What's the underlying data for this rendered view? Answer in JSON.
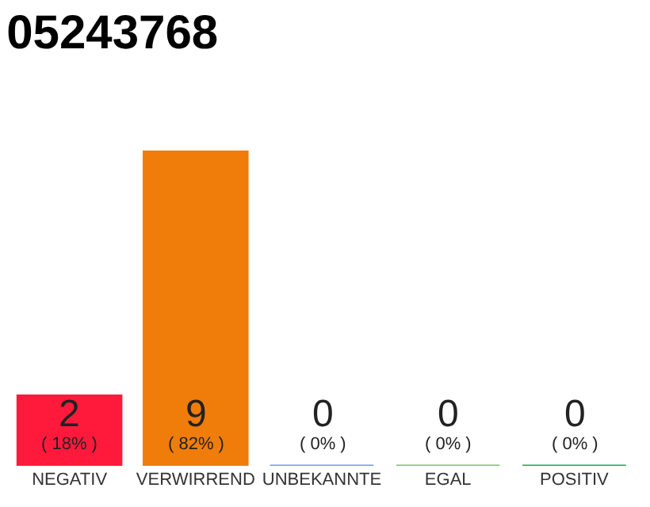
{
  "chart_data": {
    "type": "bar",
    "title": "05243768",
    "categories": [
      "NEGATIV",
      "VERWIRREND",
      "UNBEKANNTE",
      "EGAL",
      "POSITIV"
    ],
    "values": [
      2,
      9,
      0,
      0,
      0
    ],
    "colors": [
      "#ff1a3c",
      "#f07c0a",
      "#6f9be0",
      "#7cc46a",
      "#22a84a"
    ],
    "value_labels": [
      "2\n( 18% )",
      "9\n( 82% )",
      "0\n( 0% )",
      "0\n( 0% )",
      "0\n( 0% )"
    ],
    "legend": false
  }
}
